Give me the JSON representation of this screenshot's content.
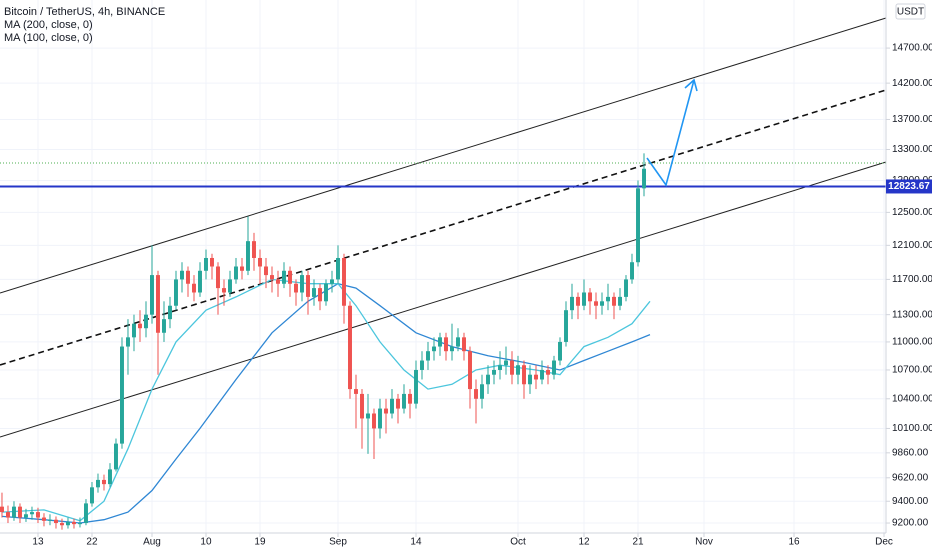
{
  "chart_data": {
    "type": "candlestick",
    "title": "Bitcoin / TetherUS, 4h, BINANCE",
    "currency": "USDT",
    "up_color": "#26a69a",
    "down_color": "#ef5350",
    "ylog": true,
    "grid": true,
    "ylim": [
      9110,
      15414
    ],
    "yticks": [
      {
        "value": 9200,
        "label": "9200.00"
      },
      {
        "value": 9400,
        "label": "9400.00"
      },
      {
        "value": 9620,
        "label": "9620.00"
      },
      {
        "value": 9860,
        "label": "9860.00"
      },
      {
        "value": 10100,
        "label": "10100.00"
      },
      {
        "value": 10400,
        "label": "10400.00"
      },
      {
        "value": 10700,
        "label": "10700.00"
      },
      {
        "value": 11000,
        "label": "11000.00"
      },
      {
        "value": 11300,
        "label": "11300.00"
      },
      {
        "value": 11700,
        "label": "11700.00"
      },
      {
        "value": 12100,
        "label": "12100.00"
      },
      {
        "value": 12500,
        "label": "12500.00"
      },
      {
        "value": 12900,
        "label": "12900.00"
      },
      {
        "value": 13300,
        "label": "13300.00"
      },
      {
        "value": 13700,
        "label": "13700.00"
      },
      {
        "value": 14200,
        "label": "14200.00"
      },
      {
        "value": 14700,
        "label": "14700.00"
      }
    ],
    "xlim": [
      6.67,
      154.33
    ],
    "xticks": [
      {
        "value": 13,
        "label": "13"
      },
      {
        "value": 22,
        "label": "22"
      },
      {
        "value": 32,
        "label": "Aug"
      },
      {
        "value": 41,
        "label": "10"
      },
      {
        "value": 50,
        "label": "19"
      },
      {
        "value": 63,
        "label": "Sep"
      },
      {
        "value": 76,
        "label": "14"
      },
      {
        "value": 93,
        "label": "Oct"
      },
      {
        "value": 104,
        "label": "12"
      },
      {
        "value": 113,
        "label": "21"
      },
      {
        "value": 124,
        "label": "Nov"
      },
      {
        "value": 139,
        "label": "16"
      },
      {
        "value": 154,
        "label": "Dec"
      }
    ],
    "x": [
      7,
      8,
      9,
      10,
      11,
      12,
      13,
      14,
      15,
      16,
      17,
      18,
      19,
      20,
      21,
      22,
      23,
      24,
      25,
      26,
      27,
      28,
      29,
      30,
      31,
      32,
      33,
      34,
      35,
      36,
      37,
      38,
      39,
      40,
      41,
      42,
      43,
      44,
      45,
      46,
      47,
      48,
      49,
      50,
      51,
      52,
      53,
      54,
      55,
      56,
      57,
      58,
      59,
      60,
      61,
      62,
      63,
      64,
      65,
      66,
      67,
      68,
      69,
      70,
      71,
      72,
      73,
      74,
      75,
      76,
      77,
      78,
      79,
      80,
      81,
      82,
      83,
      84,
      85,
      86,
      87,
      88,
      89,
      90,
      91,
      92,
      93,
      94,
      95,
      96,
      97,
      98,
      99,
      100,
      101,
      102,
      103,
      104,
      105,
      106,
      107,
      108,
      109,
      110,
      111,
      112,
      113,
      114
    ],
    "open": [
      9350,
      9300,
      9250,
      9350,
      9250,
      9280,
      9300,
      9250,
      9220,
      9230,
      9200,
      9180,
      9210,
      9190,
      9200,
      9380,
      9530,
      9600,
      9560,
      9700,
      9950,
      10950,
      11050,
      11200,
      11150,
      11300,
      11750,
      11100,
      11250,
      11400,
      11700,
      11800,
      11650,
      11550,
      11800,
      11950,
      11850,
      11600,
      11550,
      11700,
      11850,
      11800,
      12150,
      11950,
      11850,
      11750,
      11700,
      11650,
      11800,
      11650,
      11550,
      11750,
      11500,
      11600,
      11450,
      11650,
      11700,
      11950,
      11400,
      10500,
      10450,
      10200,
      10250,
      10100,
      10300,
      10250,
      10400,
      10300,
      10450,
      10350,
      10700,
      10800,
      10900,
      10950,
      11050,
      10900,
      10950,
      11050,
      10900,
      10500,
      10400,
      10550,
      10650,
      10700,
      10750,
      10800,
      10650,
      10750,
      10550,
      10650,
      10600,
      10700,
      10650,
      10800,
      11000,
      11350,
      11500,
      11400,
      11550,
      11450,
      11400,
      11450,
      11500,
      11400,
      11500,
      11700,
      11900,
      12800
    ],
    "high": [
      9480,
      9360,
      9400,
      9380,
      9330,
      9350,
      9340,
      9290,
      9280,
      9260,
      9240,
      9250,
      9240,
      9250,
      9420,
      9580,
      9660,
      9650,
      9760,
      10000,
      11050,
      11250,
      11300,
      11350,
      11450,
      12100,
      11800,
      11450,
      11500,
      11800,
      11900,
      11850,
      11750,
      11900,
      12050,
      12000,
      11900,
      11700,
      11800,
      11950,
      11950,
      12450,
      12250,
      12050,
      11950,
      11850,
      11800,
      11900,
      11850,
      11700,
      11800,
      11800,
      11700,
      11650,
      11700,
      11800,
      12100,
      12000,
      11450,
      10650,
      10500,
      10450,
      10300,
      10400,
      10400,
      10500,
      10450,
      10550,
      10500,
      10800,
      10900,
      11000,
      11050,
      11100,
      11100,
      11200,
      11150,
      11100,
      10950,
      10600,
      10650,
      10750,
      10800,
      10900,
      10950,
      10900,
      10850,
      10800,
      10750,
      10750,
      10800,
      10750,
      10850,
      11050,
      11450,
      11650,
      11550,
      11700,
      11600,
      11550,
      11550,
      11650,
      11550,
      11600,
      11750,
      12000,
      12900,
      13250
    ],
    "low": [
      9250,
      9200,
      9220,
      9200,
      9210,
      9230,
      9200,
      9170,
      9180,
      9150,
      9140,
      9150,
      9150,
      9160,
      9180,
      9350,
      9480,
      9500,
      9530,
      9680,
      9900,
      10650,
      10900,
      11000,
      11050,
      11200,
      10650,
      11000,
      11150,
      11350,
      11550,
      11500,
      11450,
      11500,
      11700,
      11700,
      11300,
      11400,
      11500,
      11650,
      11700,
      11750,
      11800,
      11650,
      11600,
      11550,
      11500,
      11600,
      11500,
      11400,
      11450,
      11300,
      11400,
      11350,
      11400,
      11550,
      11650,
      11200,
      10400,
      10100,
      9900,
      9850,
      9800,
      10000,
      10050,
      10200,
      10150,
      10250,
      10200,
      10300,
      10600,
      10700,
      10800,
      10850,
      10800,
      10800,
      10900,
      10800,
      10300,
      10150,
      10300,
      10450,
      10550,
      10600,
      10650,
      10550,
      10550,
      10400,
      10450,
      10500,
      10550,
      10550,
      10600,
      10750,
      10950,
      11250,
      11250,
      11350,
      11300,
      11250,
      11300,
      11350,
      11250,
      11350,
      11450,
      11650,
      11850,
      12700
    ],
    "close": [
      9300,
      9250,
      9350,
      9250,
      9280,
      9300,
      9250,
      9220,
      9230,
      9200,
      9180,
      9210,
      9190,
      9200,
      9380,
      9530,
      9600,
      9560,
      9700,
      9950,
      10950,
      11050,
      11200,
      11150,
      11300,
      11750,
      11100,
      11250,
      11400,
      11700,
      11800,
      11650,
      11550,
      11800,
      11950,
      11850,
      11600,
      11550,
      11700,
      11850,
      11800,
      12150,
      11950,
      11850,
      11750,
      11700,
      11650,
      11800,
      11650,
      11550,
      11750,
      11500,
      11600,
      11450,
      11650,
      11700,
      11950,
      11400,
      10500,
      10450,
      10200,
      10250,
      10100,
      10300,
      10250,
      10400,
      10300,
      10450,
      10350,
      10700,
      10800,
      10900,
      10950,
      11050,
      10900,
      10950,
      11050,
      10900,
      10500,
      10400,
      10550,
      10650,
      10700,
      10750,
      10800,
      10650,
      10750,
      10550,
      10650,
      10600,
      10700,
      10650,
      10800,
      11000,
      11350,
      11500,
      11400,
      11550,
      11450,
      11400,
      11450,
      11500,
      11400,
      11500,
      11700,
      11900,
      12800,
      13050
    ],
    "lines": [
      {
        "name": "MA (200, close, 0)",
        "color": "#2f87d4",
        "x": [
          7,
          14,
          20,
          24,
          28,
          32,
          36,
          40,
          46,
          52,
          58,
          63,
          66,
          70,
          76,
          82,
          88,
          94,
          100,
          104,
          108,
          112,
          115
        ],
        "values": [
          9260,
          9230,
          9200,
          9230,
          9300,
          9500,
          9800,
          10100,
          10600,
          11100,
          11450,
          11650,
          11600,
          11400,
          11100,
          10950,
          10850,
          10780,
          10700,
          10800,
          10900,
          11000,
          11080
        ]
      },
      {
        "name": "MA (100, close, 0)",
        "color": "#4cc6dd",
        "x": [
          7,
          14,
          20,
          24,
          28,
          32,
          36,
          41,
          46,
          52,
          58,
          63,
          66,
          70,
          74,
          78,
          82,
          86,
          90,
          96,
          100,
          104,
          108,
          112,
          115
        ],
        "values": [
          9300,
          9320,
          9220,
          9400,
          9900,
          10500,
          11000,
          11350,
          11500,
          11700,
          11650,
          11650,
          11400,
          11000,
          10700,
          10500,
          10550,
          10700,
          10750,
          10700,
          10650,
          10950,
          11050,
          11200,
          11450
        ]
      }
    ],
    "last_price": 12823.67,
    "dotted_level": 13124
  }
}
